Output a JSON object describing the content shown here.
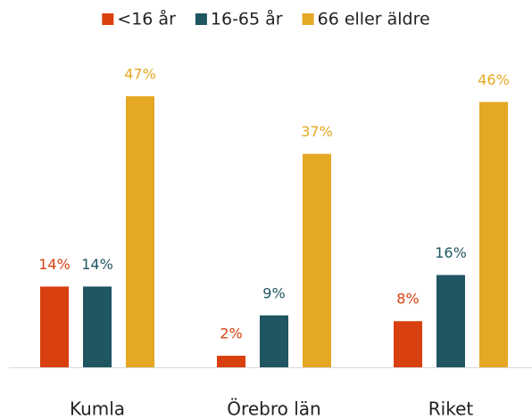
{
  "chart_data": {
    "type": "bar",
    "categories": [
      "Kumla",
      "Örebro län",
      "Riket"
    ],
    "series": [
      {
        "name": "<16 år",
        "color": "#d9400f",
        "values": [
          14,
          2,
          8
        ],
        "value_labels": [
          "14%",
          "2%",
          "8%"
        ]
      },
      {
        "name": "16-65 år",
        "color": "#1f5662",
        "values": [
          14,
          9,
          16
        ],
        "value_labels": [
          "14%",
          "9%",
          "16%"
        ]
      },
      {
        "name": "66 eller äldre",
        "color": "#e5a823",
        "values": [
          47,
          37,
          46
        ],
        "value_labels": [
          "47%",
          "37%",
          "46%"
        ]
      }
    ]
  }
}
